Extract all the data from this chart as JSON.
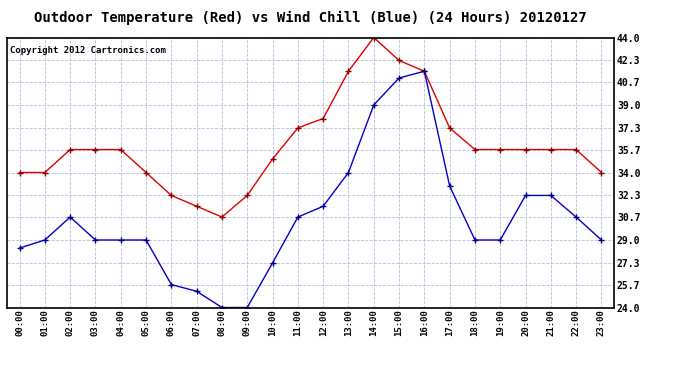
{
  "title": "Outdoor Temperature (Red) vs Wind Chill (Blue) (24 Hours) 20120127",
  "copyright": "Copyright 2012 Cartronics.com",
  "hours": [
    "00:00",
    "01:00",
    "02:00",
    "03:00",
    "04:00",
    "05:00",
    "06:00",
    "07:00",
    "08:00",
    "09:00",
    "10:00",
    "11:00",
    "12:00",
    "13:00",
    "14:00",
    "15:00",
    "16:00",
    "17:00",
    "18:00",
    "19:00",
    "20:00",
    "21:00",
    "22:00",
    "23:00"
  ],
  "red_temps": [
    34.0,
    34.0,
    35.7,
    35.7,
    35.7,
    34.0,
    32.3,
    31.5,
    30.7,
    32.3,
    35.0,
    37.3,
    38.0,
    41.5,
    44.0,
    42.3,
    41.5,
    37.3,
    35.7,
    35.7,
    35.7,
    35.7,
    35.7,
    34.0
  ],
  "blue_temps": [
    28.4,
    29.0,
    30.7,
    29.0,
    29.0,
    29.0,
    25.7,
    25.2,
    24.0,
    24.0,
    27.3,
    30.7,
    31.5,
    34.0,
    39.0,
    41.0,
    41.5,
    33.0,
    29.0,
    29.0,
    32.3,
    32.3,
    30.7,
    29.0
  ],
  "ylim_min": 24.0,
  "ylim_max": 44.0,
  "yticks": [
    24.0,
    25.7,
    27.3,
    29.0,
    30.7,
    32.3,
    34.0,
    35.7,
    37.3,
    39.0,
    40.7,
    42.3,
    44.0
  ],
  "red_color": "#dd0000",
  "blue_color": "#0000cc",
  "bg_color": "#ffffff",
  "grid_color": "#bbbbdd",
  "title_fontsize": 10,
  "copyright_fontsize": 6.5
}
